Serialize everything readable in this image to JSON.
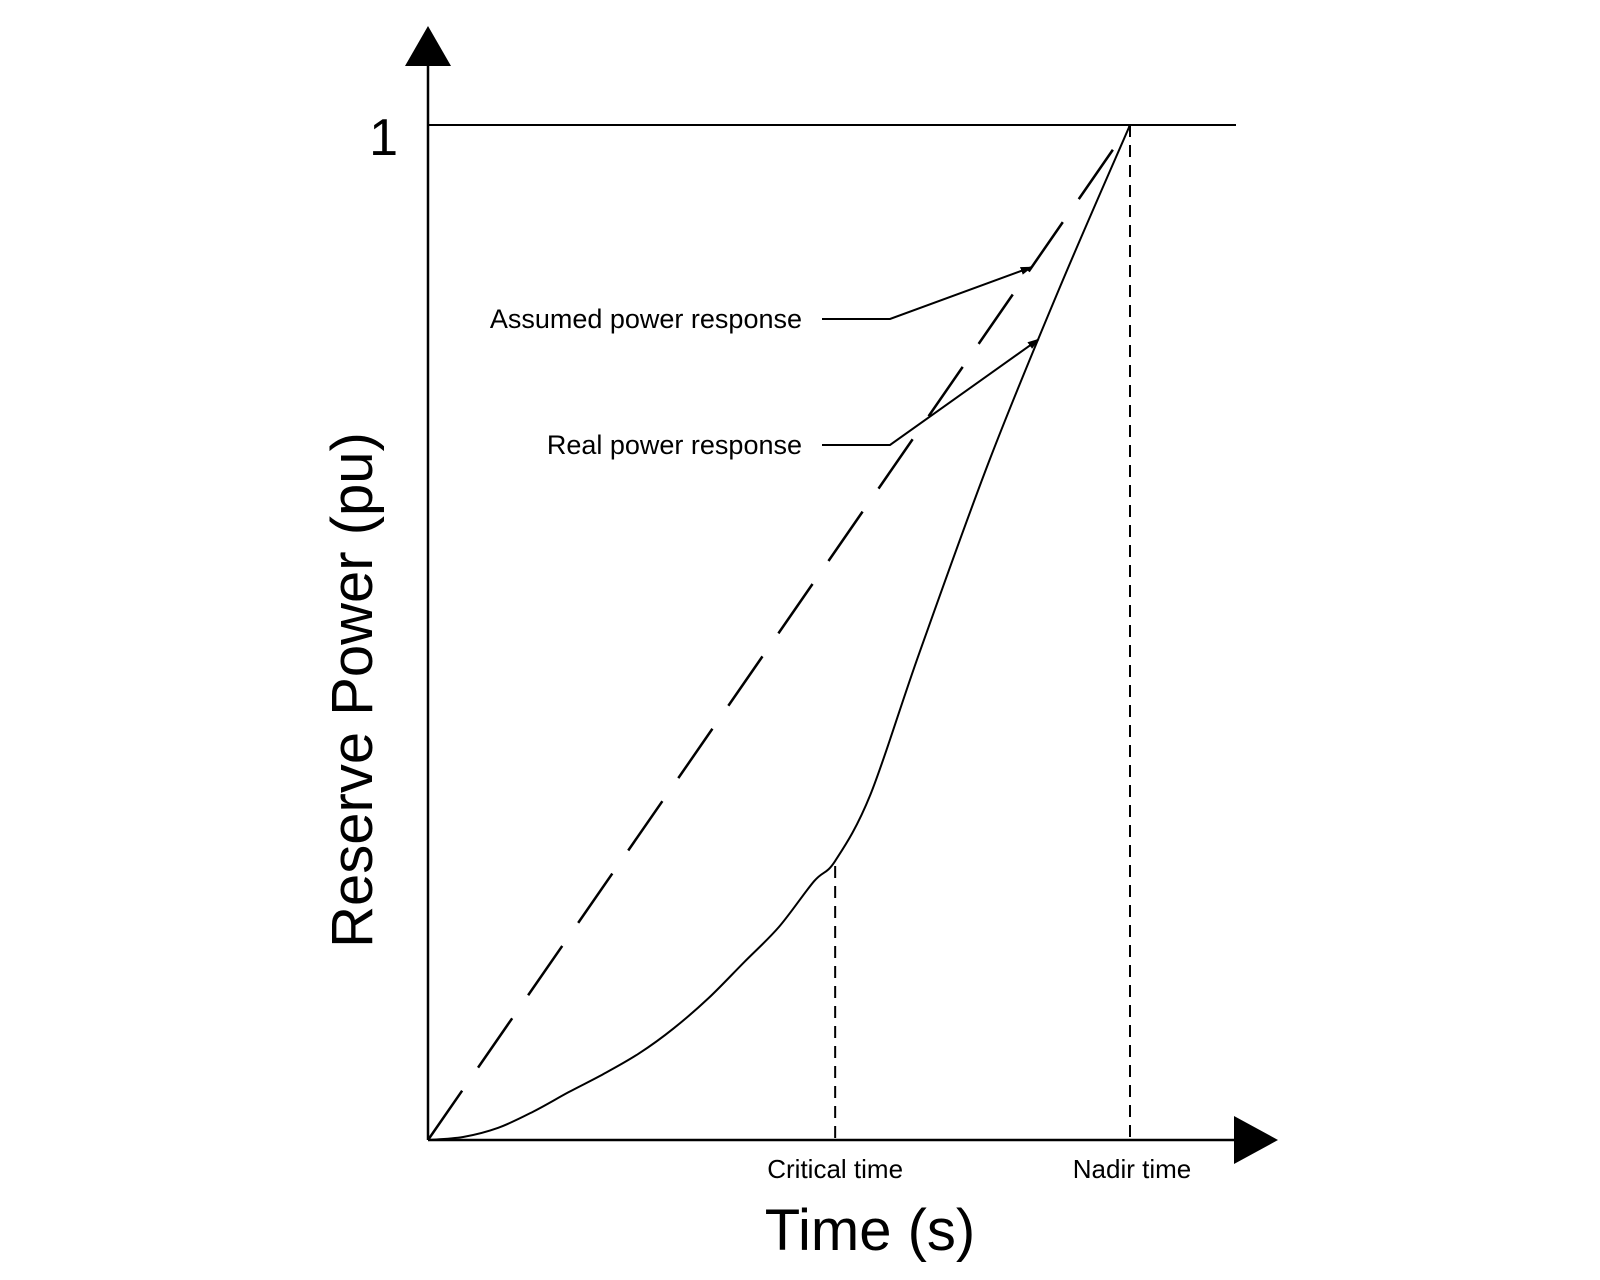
{
  "chart_data": {
    "type": "line",
    "title": "",
    "xlabel": "Time (s)",
    "ylabel": "Reserve Power (pu)",
    "xlim": [
      0,
      1
    ],
    "ylim": [
      0,
      1
    ],
    "y_ticks": [
      "1"
    ],
    "x_markers": [
      {
        "label": "Critical time",
        "x": 0.58,
        "y": 0.27
      },
      {
        "label": "Nadir time",
        "x": 1.0,
        "y": 1.0
      }
    ],
    "series": [
      {
        "name": "Assumed power response",
        "style": "dashed",
        "x": [
          0,
          1.0
        ],
        "y": [
          0,
          1.0
        ]
      },
      {
        "name": "Real power response",
        "style": "solid",
        "x": [
          0,
          0.05,
          0.1,
          0.15,
          0.2,
          0.25,
          0.3,
          0.35,
          0.4,
          0.45,
          0.5,
          0.55,
          0.58,
          0.63,
          0.7,
          0.8,
          0.9,
          1.0
        ],
        "y": [
          0,
          0.003,
          0.012,
          0.028,
          0.047,
          0.065,
          0.085,
          0.11,
          0.14,
          0.175,
          0.21,
          0.255,
          0.275,
          0.34,
          0.48,
          0.67,
          0.84,
          1.0
        ]
      }
    ],
    "grid": false,
    "legend": "none",
    "annotations": [
      {
        "text": "Assumed power response",
        "target_series": 0,
        "target_x": 0.86
      },
      {
        "text": "Real power response",
        "target_series": 1,
        "target_x": 0.87
      }
    ]
  }
}
